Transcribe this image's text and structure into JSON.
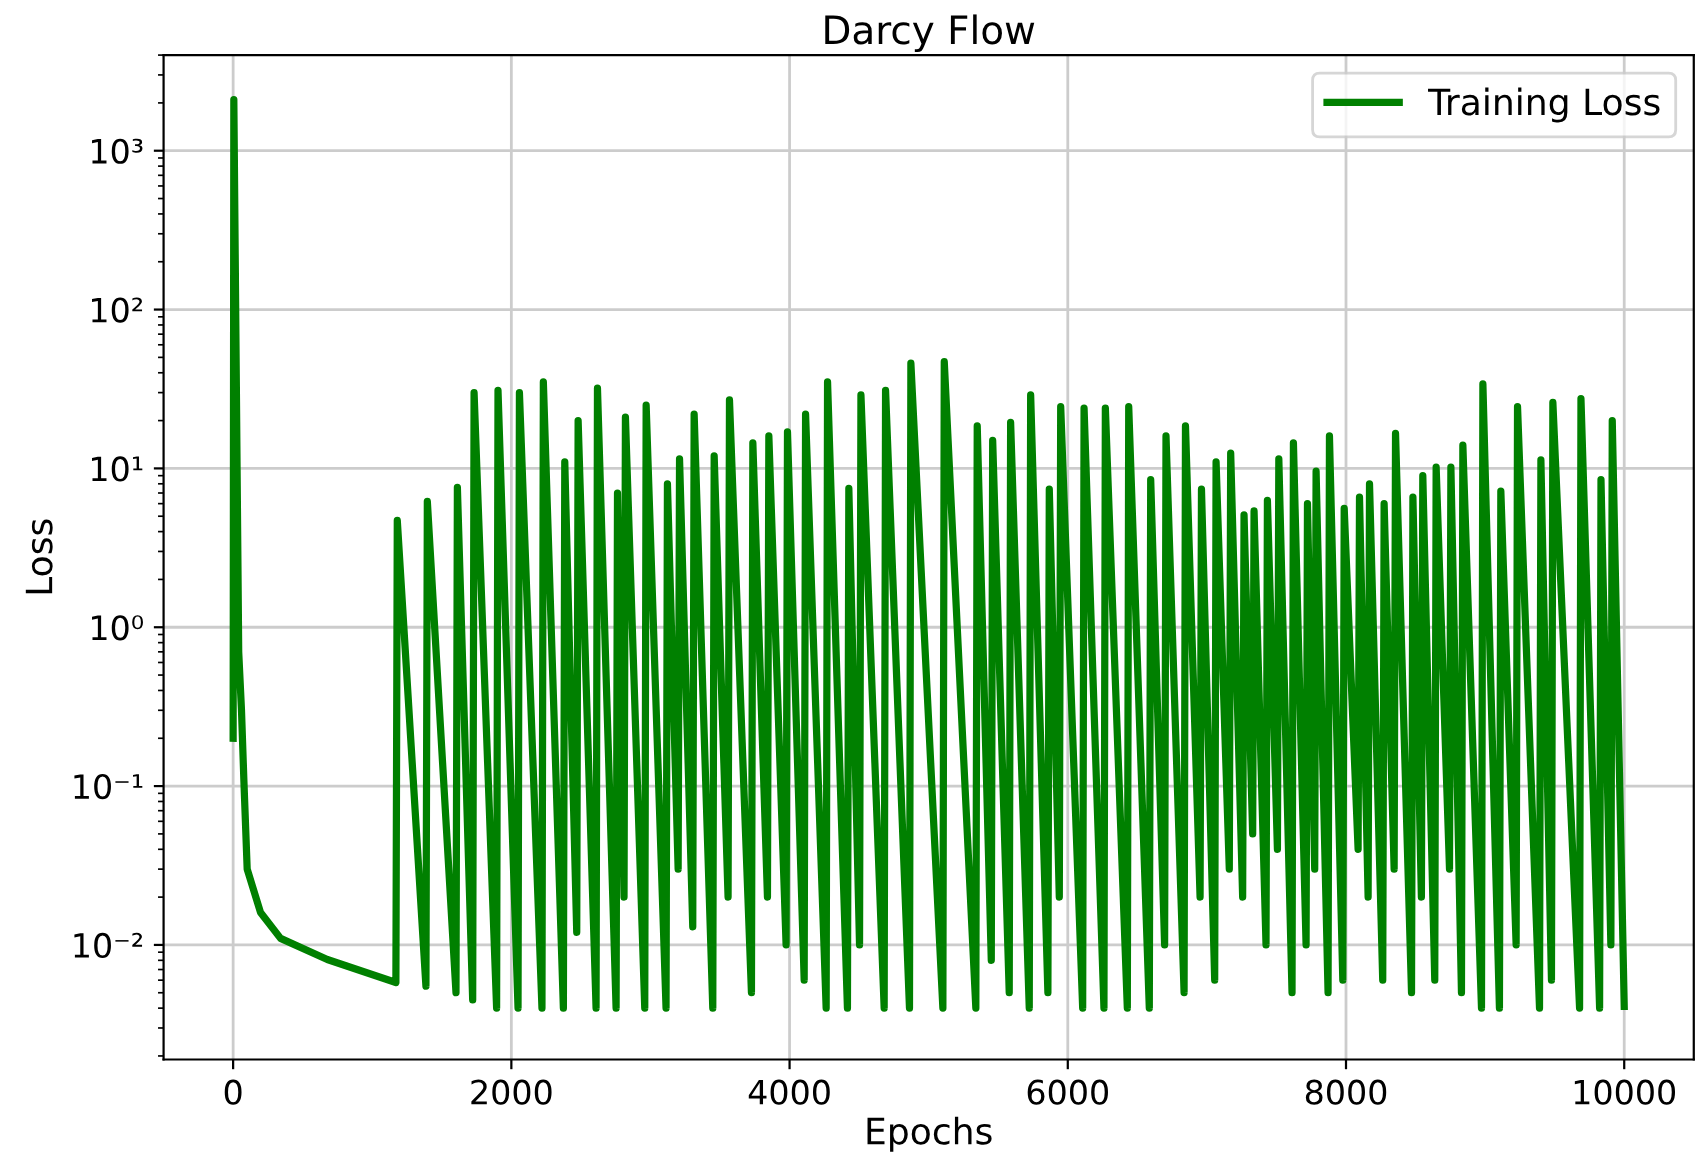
{
  "chart_data": {
    "type": "line",
    "title": "Darcy Flow",
    "xlabel": "Epochs",
    "ylabel": "Loss",
    "log": "y",
    "grid": true,
    "legend": "top right",
    "line_style": "solid",
    "marker": "none",
    "xlim": [
      -500,
      10500
    ],
    "xticks": [
      0,
      2000,
      4000,
      6000,
      8000,
      10000
    ],
    "ylim": [
      0.0019,
      4000
    ],
    "yticks": [
      {
        "value": 0.01,
        "label": "10⁻²"
      },
      {
        "value": 0.1,
        "label": "10⁻¹"
      },
      {
        "value": 1,
        "label": "10⁰"
      },
      {
        "value": 10,
        "label": "10¹"
      },
      {
        "value": 100,
        "label": "10²"
      },
      {
        "value": 1000,
        "label": "10³"
      }
    ],
    "series": [
      {
        "name": "Training Loss",
        "color": "#008000",
        "x": [
          0,
          5,
          40,
          60,
          77,
          101,
          197,
          341,
          677,
          1170,
          1180,
          1386,
          1396,
          1602,
          1612,
          1722,
          1732,
          1894,
          1904,
          2048,
          2058,
          2220,
          2230,
          2374,
          2384,
          2470,
          2480,
          2609,
          2619,
          2753,
          2763,
          2810,
          2820,
          2959,
          2969,
          3112,
          3122,
          3199,
          3209,
          3304,
          3314,
          3448,
          3458,
          3558,
          3568,
          3726,
          3736,
          3841,
          3851,
          3975,
          3985,
          4105,
          4115,
          4263,
          4273,
          4416,
          4426,
          4503,
          4513,
          4680,
          4690,
          4862,
          4872,
          5102,
          5112,
          5339,
          5349,
          5450,
          5460,
          5579,
          5589,
          5723,
          5733,
          5857,
          5867,
          5939,
          5949,
          6107,
          6117,
          6260,
          6270,
          6428,
          6438,
          6586,
          6596,
          6696,
          6706,
          6836,
          6846,
          6951,
          6961,
          7056,
          7066,
          7161,
          7171,
          7257,
          7267,
          7329,
          7339,
          7425,
          7435,
          7507,
          7517,
          7612,
          7622,
          7713,
          7723,
          7775,
          7785,
          7871,
          7881,
          7977,
          7987,
          8087,
          8097,
          8159,
          8169,
          8264,
          8274,
          8346,
          8356,
          8471,
          8481,
          8542,
          8552,
          8638,
          8648,
          8744,
          8754,
          8830,
          8840,
          8974,
          8984,
          9103,
          9113,
          9223,
          9233,
          9391,
          9401,
          9477,
          9487,
          9679,
          9689,
          9823,
          9833,
          9904,
          9914,
          10000
        ],
        "values": [
          0.2,
          2100,
          0.7,
          0.3,
          0.11,
          0.03,
          0.016,
          0.011,
          0.0081,
          0.0058,
          4.7,
          0.0055,
          6.2,
          0.005,
          7.6,
          0.0045,
          30,
          0.004,
          31,
          0.004,
          30,
          0.004,
          35,
          0.004,
          11,
          0.012,
          20,
          0.004,
          32,
          0.004,
          7,
          0.02,
          21,
          0.004,
          25,
          0.004,
          8,
          0.03,
          11.5,
          0.013,
          22,
          0.004,
          12,
          0.02,
          27,
          0.005,
          14.5,
          0.02,
          16,
          0.01,
          17,
          0.006,
          22,
          0.004,
          35,
          0.004,
          7.5,
          0.01,
          29,
          0.004,
          31,
          0.004,
          46,
          0.004,
          47,
          0.004,
          18.5,
          0.008,
          15,
          0.005,
          19.5,
          0.004,
          29,
          0.005,
          7.4,
          0.02,
          24.5,
          0.004,
          24,
          0.004,
          24,
          0.004,
          24.5,
          0.004,
          8.5,
          0.01,
          16,
          0.005,
          18.5,
          0.02,
          7.4,
          0.006,
          11,
          0.03,
          12.5,
          0.02,
          5.1,
          0.05,
          5.4,
          0.01,
          6.3,
          0.04,
          11.5,
          0.005,
          14.5,
          0.01,
          6,
          0.03,
          9.6,
          0.005,
          16,
          0.006,
          5.6,
          0.04,
          6.6,
          0.02,
          8,
          0.006,
          6,
          0.03,
          16.6,
          0.005,
          6.6,
          0.02,
          9,
          0.006,
          10.2,
          0.03,
          10.2,
          0.005,
          14,
          0.004,
          34,
          0.004,
          7.2,
          0.01,
          24.5,
          0.004,
          11.3,
          0.006,
          26,
          0.004,
          27.5,
          0.004,
          8.5,
          0.01,
          20,
          0.0041
        ]
      }
    ]
  }
}
